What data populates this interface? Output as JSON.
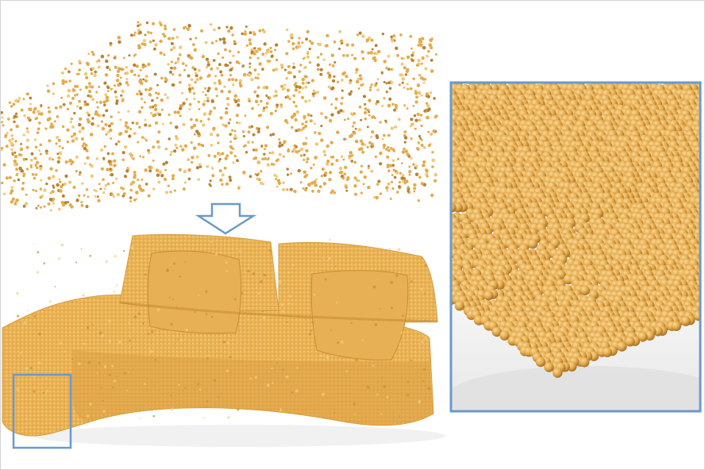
{
  "figure": {
    "description_labels": [],
    "colors": {
      "point": "#E5AA4B",
      "point_light": "#F2C778",
      "point_dark": "#B98234",
      "arrow_fill": "#FFFFFF",
      "arrow_stroke": "#6A9ACB",
      "highlight_box": "#6A9ACB",
      "background": "#FFFFFF",
      "shadow": "#E6E6E6"
    },
    "panels": [
      {
        "id": "sparse-input",
        "type": "sparse-point-cloud"
      },
      {
        "id": "dense-output",
        "type": "dense-point-cloud-sofa"
      },
      {
        "id": "zoom-inset",
        "type": "close-up-of-highlighted-region"
      }
    ],
    "arrow": {
      "direction": "down",
      "icon": "down-arrow-icon"
    }
  }
}
